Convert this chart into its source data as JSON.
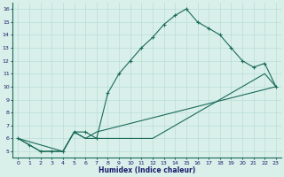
{
  "xlabel": "Humidex (Indice chaleur)",
  "xlim": [
    -0.5,
    23.5
  ],
  "ylim": [
    4.5,
    16.5
  ],
  "xticks": [
    0,
    1,
    2,
    3,
    4,
    5,
    6,
    7,
    8,
    9,
    10,
    11,
    12,
    13,
    14,
    15,
    16,
    17,
    18,
    19,
    20,
    21,
    22,
    23
  ],
  "yticks": [
    5,
    6,
    7,
    8,
    9,
    10,
    11,
    12,
    13,
    14,
    15,
    16
  ],
  "background_color": "#d9efea",
  "grid_color": "#b8ddd5",
  "line_color": "#1a6b5a",
  "line1_x": [
    0,
    1,
    2,
    3,
    4,
    5,
    6,
    7,
    8,
    9,
    10,
    11,
    12,
    13,
    14,
    15,
    16,
    17,
    18,
    19,
    20,
    21,
    22,
    23
  ],
  "line1_y": [
    6,
    5.5,
    5,
    5,
    5,
    6.5,
    6.5,
    6,
    9.5,
    11,
    12,
    13,
    13.8,
    14.8,
    15.5,
    16,
    15,
    14.5,
    14,
    13,
    12,
    11.5,
    11.8,
    10
  ],
  "line2_x": [
    0,
    1,
    2,
    3,
    4,
    5,
    6,
    7,
    8,
    9,
    10,
    11,
    12,
    13,
    14,
    15,
    16,
    17,
    18,
    19,
    20,
    21,
    22,
    23
  ],
  "line2_y": [
    6,
    5.5,
    5,
    5,
    5,
    6.5,
    6,
    6,
    6,
    6,
    6,
    6,
    6,
    6.5,
    7,
    7.5,
    8,
    8.5,
    9,
    9.5,
    10,
    10.5,
    11,
    10
  ],
  "line3_x": [
    0,
    4,
    5,
    6,
    7,
    23
  ],
  "line3_y": [
    6,
    5,
    6.5,
    6,
    6.5,
    10
  ]
}
